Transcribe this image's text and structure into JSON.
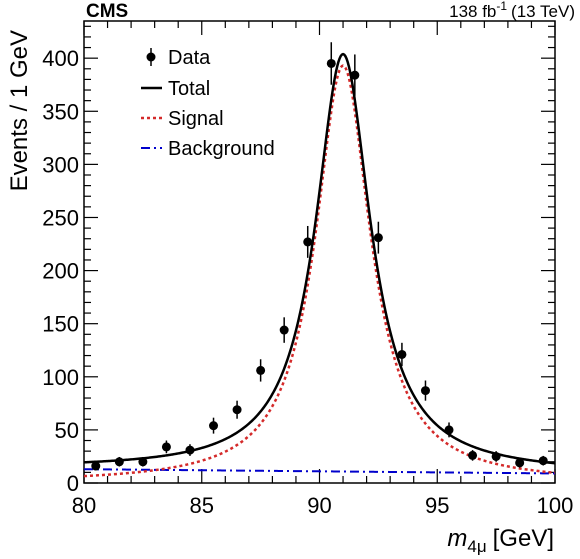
{
  "header": {
    "experiment": "CMS",
    "lumi_value": "138 fb",
    "lumi_exp": "-1",
    "lumi_energy": "(13 TeV)"
  },
  "chart_data": {
    "type": "line",
    "xlabel_main": "m",
    "xlabel_sub": "4μ",
    "xlabel_unit": "[GeV]",
    "ylabel": "Events / 1 GeV",
    "xlim": [
      80,
      100
    ],
    "ylim": [
      0,
      435
    ],
    "x_ticks": [
      80,
      85,
      90,
      95,
      100
    ],
    "y_ticks": [
      0,
      50,
      100,
      150,
      200,
      250,
      300,
      350,
      400
    ],
    "grid": false,
    "legend_position": "top-left",
    "legend": [
      {
        "label": "Data",
        "style": "marker"
      },
      {
        "label": "Total",
        "style": "solid",
        "color": "#000000"
      },
      {
        "label": "Signal",
        "style": "dotted",
        "color": "#d42a2a"
      },
      {
        "label": "Background",
        "style": "dashdot",
        "color": "#0000cc"
      }
    ],
    "data_points": {
      "name": "Data",
      "x": [
        80.5,
        81.5,
        82.5,
        83.5,
        84.5,
        85.5,
        86.5,
        87.5,
        88.5,
        89.5,
        90.5,
        91.5,
        92.5,
        93.5,
        94.5,
        95.5,
        96.5,
        97.5,
        98.5,
        99.5
      ],
      "y": [
        16,
        20,
        20,
        34,
        31,
        54,
        69,
        106,
        144,
        227,
        395,
        384,
        231,
        121,
        87,
        50,
        26,
        25,
        19,
        21
      ],
      "err": [
        4,
        4.5,
        4.5,
        6,
        5.5,
        7.5,
        8.5,
        10.5,
        12,
        15,
        20,
        19.5,
        15,
        11,
        9.5,
        7,
        5,
        5,
        4.5,
        4.5
      ]
    },
    "curves": {
      "peak_mass": 91.0,
      "width": 2.85,
      "signal_peak": 393,
      "background_start": 13,
      "background_end": 9
    }
  }
}
